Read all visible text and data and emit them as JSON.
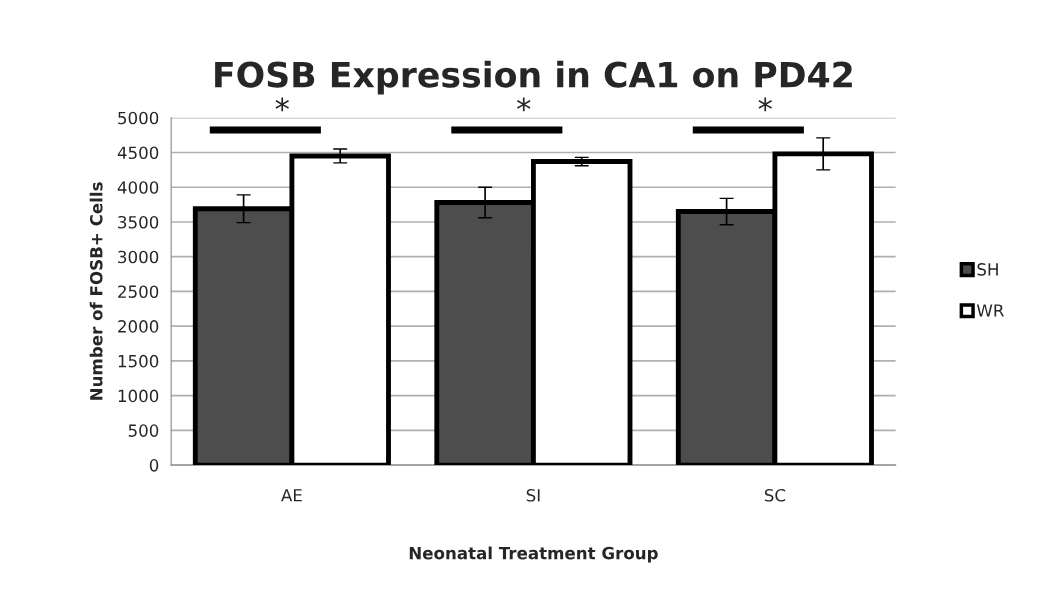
{
  "chart_data": {
    "type": "bar",
    "title": "FOSB Expression in CA1 on PD42",
    "xlabel": "Neonatal Treatment Group",
    "ylabel": "Number of FOSB+ Cells",
    "categories": [
      "AE",
      "SI",
      "SC"
    ],
    "series": [
      {
        "name": "SH",
        "color": "#4d4d4d",
        "values": [
          3690,
          3780,
          3650
        ],
        "errors": [
          200,
          220,
          190
        ]
      },
      {
        "name": "WR",
        "color": "#ffffff",
        "values": [
          4450,
          4370,
          4480
        ],
        "errors": [
          100,
          60,
          230
        ]
      }
    ],
    "ylim": [
      0,
      5000
    ],
    "yticks": [
      0,
      500,
      1000,
      1500,
      2000,
      2500,
      3000,
      3500,
      4000,
      4500,
      5000
    ],
    "grid": "y",
    "legend": "right",
    "annotations": [
      "*",
      "*",
      "*"
    ]
  }
}
